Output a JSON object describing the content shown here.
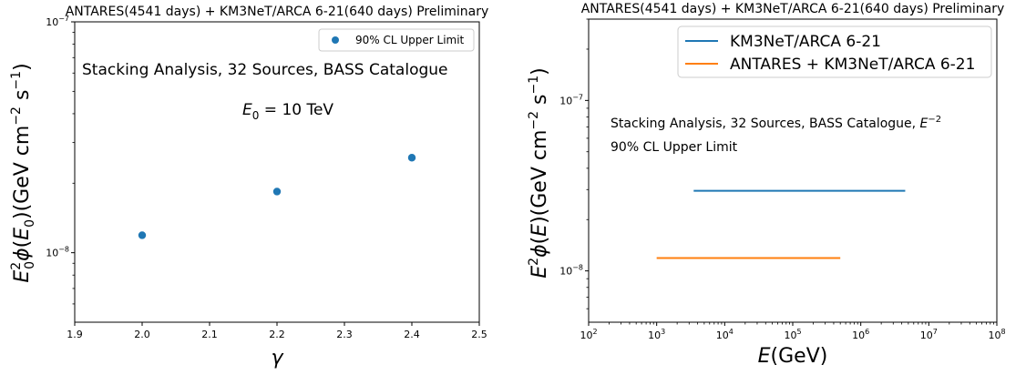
{
  "chart_data": [
    {
      "type": "scatter",
      "title": "ANTARES(4541 days) + KM3NeT/ARCA 6-21(640 days) Preliminary",
      "xlabel": "γ",
      "ylabel": "E₀²ϕ(E₀)(GeV cm⁻² s⁻¹)",
      "xlim": [
        1.9,
        2.5
      ],
      "ylim": [
        5e-09,
        1e-07
      ],
      "yscale": "log",
      "x_ticks": [
        "1.9",
        "2.0",
        "2.1",
        "2.2",
        "2.3",
        "2.4",
        "2.5"
      ],
      "y_ticks": [
        "10⁻⁸",
        "10⁻⁷"
      ],
      "legend": {
        "location": "upper right",
        "entries": [
          "90% CL Upper Limit"
        ]
      },
      "annotations": [
        "Stacking Analysis, 32 Sources, BASS Catalogue",
        "E₀ = 10 TeV"
      ],
      "series": [
        {
          "name": "90% CL Upper Limit",
          "color": "#1f77b4",
          "x": [
            2.0,
            2.2,
            2.4
          ],
          "y": [
            1.19e-08,
            1.84e-08,
            2.58e-08
          ]
        }
      ]
    },
    {
      "type": "line",
      "title": "ANTARES(4541 days) + KM3NeT/ARCA 6-21(640 days) Preliminary",
      "xlabel": "E(GeV)",
      "ylabel": "E²ϕ(E)(GeV cm⁻² s⁻¹)",
      "xlim": [
        100,
        100000000
      ],
      "ylim": [
        5e-09,
        3e-07
      ],
      "xscale": "log",
      "yscale": "log",
      "x_ticks": [
        "10²",
        "10³",
        "10⁴",
        "10⁵",
        "10⁶",
        "10⁷",
        "10⁸"
      ],
      "y_ticks": [
        "10⁻⁸",
        "10⁻⁷"
      ],
      "legend": {
        "location": "upper right",
        "entries": [
          "KM3NeT/ARCA 6-21",
          "ANTARES + KM3NeT/ARCA 6-21"
        ]
      },
      "annotations": [
        "Stacking Analysis, 32 Sources, BASS Catalogue, E⁻²",
        "90% CL Upper Limit"
      ],
      "series": [
        {
          "name": "KM3NeT/ARCA 6-21",
          "color": "#1f77b4",
          "x": [
            3500,
            4500000
          ],
          "y": [
            2.95e-08,
            2.95e-08
          ]
        },
        {
          "name": "ANTARES + KM3NeT/ARCA 6-21",
          "color": "#ff7f0e",
          "x": [
            1000,
            500000
          ],
          "y": [
            1.19e-08,
            1.19e-08
          ]
        }
      ]
    }
  ]
}
